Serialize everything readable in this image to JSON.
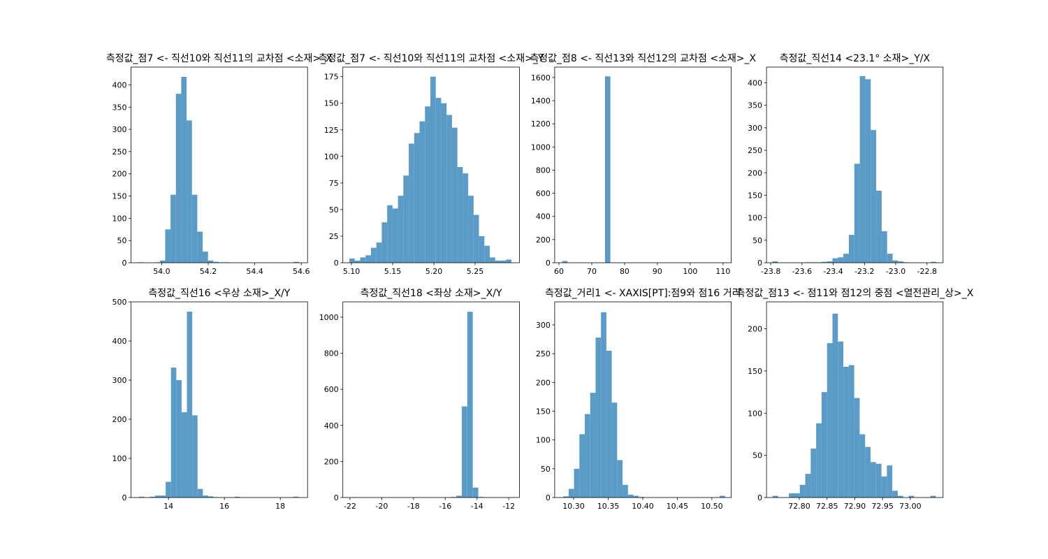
{
  "chart_data": [
    {
      "type": "histogram",
      "title": "측정값_점7 <- 직선10와 직선11의 교차점 <소재>_X",
      "color": "#5a9bc8",
      "bins": [
        53.9,
        53.923,
        53.946,
        53.969,
        53.992,
        54.015,
        54.038,
        54.061,
        54.084,
        54.107,
        54.13,
        54.153,
        54.176,
        54.199,
        54.222,
        54.245,
        54.268,
        54.291,
        54.314,
        54.337,
        54.36,
        54.383,
        54.406,
        54.429,
        54.452,
        54.475,
        54.498,
        54.521,
        54.544,
        54.567,
        54.59
      ],
      "counts": [
        1,
        0,
        0,
        1,
        5,
        75,
        153,
        380,
        418,
        320,
        153,
        70,
        25,
        5,
        2,
        1,
        1,
        0,
        0,
        0,
        0,
        0,
        0,
        0,
        0,
        0,
        0,
        0,
        0,
        2
      ],
      "xlim": [
        53.868,
        54.627
      ],
      "ylim": [
        0,
        440
      ],
      "xticks": [
        {
          "value": 54,
          "label": "54.0"
        },
        54.2,
        54.4,
        54.6
      ],
      "yticks": [
        0,
        50,
        100,
        150,
        200,
        250,
        300,
        350,
        400
      ]
    },
    {
      "type": "histogram",
      "title": "측정값_점7 <- 직선10와 직선11의 교차점 <소재>_Y",
      "color": "#5a9bc8",
      "bins": [
        5.0975,
        5.10405,
        5.1106,
        5.11715,
        5.1237,
        5.13025,
        5.1368,
        5.14335,
        5.1499,
        5.15645,
        5.163,
        5.16955,
        5.1761,
        5.18265,
        5.1892,
        5.19575,
        5.2023,
        5.20885,
        5.2154,
        5.22195,
        5.2285,
        5.23505,
        5.2416,
        5.24815,
        5.2547,
        5.26125,
        5.2678,
        5.27435,
        5.2809,
        5.28745,
        5.294
      ],
      "counts": [
        4,
        2,
        5,
        7,
        14,
        19,
        38,
        54,
        51,
        63,
        82,
        112,
        122,
        133,
        147,
        175,
        155,
        150,
        139,
        127,
        90,
        84,
        63,
        45,
        25,
        16,
        5,
        2,
        2,
        3
      ],
      "xlim": [
        5.0896,
        5.3037
      ],
      "ylim": [
        0,
        184
      ],
      "xticks": [
        {
          "value": 5.1,
          "label": "5.10"
        },
        5.15,
        {
          "value": 5.2,
          "label": "5.20"
        },
        5.25
      ],
      "yticks": [
        0,
        25,
        50,
        75,
        100,
        125,
        150,
        175
      ]
    },
    {
      "type": "histogram",
      "title": "측정값_점8 <- 직선13와 직선12의 교차점 <소재>_X",
      "color": "#5a9bc8",
      "bins": [
        61,
        62.63,
        64.26,
        65.89,
        67.52,
        69.15,
        70.78,
        72.41,
        74.04,
        75.67,
        77.3,
        78.93,
        80.56,
        82.19,
        83.82,
        85.45,
        87.08,
        88.71,
        90.34,
        91.97,
        93.6,
        95.23,
        96.86,
        98.49,
        100.12,
        101.75,
        103.38,
        105.01,
        106.64,
        108.27,
        109.9
      ],
      "counts": [
        15,
        0,
        0,
        0,
        0,
        0,
        0,
        0,
        1610,
        0,
        0,
        0,
        0,
        0,
        0,
        0,
        0,
        0,
        0,
        0,
        0,
        0,
        0,
        0,
        0,
        0,
        0,
        0,
        0,
        1
      ],
      "xlim": [
        58.7,
        112.5
      ],
      "ylim": [
        0,
        1690
      ],
      "xticks": [
        60,
        70,
        80,
        90,
        100,
        110
      ],
      "yticks": [
        0,
        200,
        400,
        600,
        800,
        1000,
        1200,
        1400,
        1600
      ]
    },
    {
      "type": "histogram",
      "title": "측정값_직선14 <23.1° 소재>_Y/X",
      "color": "#5a9bc8",
      "bins": [
        -23.79,
        -23.755,
        -23.72,
        -23.685,
        -23.65,
        -23.615,
        -23.58,
        -23.545,
        -23.51,
        -23.475,
        -23.44,
        -23.405,
        -23.37,
        -23.335,
        -23.3,
        -23.265,
        -23.23,
        -23.195,
        -23.16,
        -23.125,
        -23.09,
        -23.055,
        -23.02,
        -22.985,
        -22.95,
        -22.915,
        -22.88,
        -22.845,
        -22.81,
        -22.775,
        -22.74
      ],
      "counts": [
        3,
        0,
        0,
        0,
        0,
        0,
        1,
        1,
        1,
        2,
        3,
        10,
        12,
        20,
        62,
        220,
        415,
        408,
        295,
        160,
        70,
        20,
        5,
        3,
        1,
        0,
        0,
        0,
        0,
        2
      ],
      "xlim": [
        -23.827,
        -22.697
      ],
      "ylim": [
        0,
        435
      ],
      "xticks": [
        -23.8,
        -23.6,
        -23.4,
        -23.2,
        {
          "value": -23,
          "label": "-23.0"
        },
        -22.8
      ],
      "yticks": [
        0,
        50,
        100,
        150,
        200,
        250,
        300,
        350,
        400
      ]
    },
    {
      "type": "histogram",
      "title": "측정값_직선16 <우상 소재>_X/Y",
      "color": "#5a9bc8",
      "bins": [
        12.95,
        13.14,
        13.33,
        13.52,
        13.71,
        13.9,
        14.09,
        14.28,
        14.47,
        14.66,
        14.85,
        15.04,
        15.23,
        15.42,
        15.61,
        15.8,
        15.99,
        16.18,
        16.37,
        16.56,
        16.75,
        16.94,
        17.13,
        17.32,
        17.51,
        17.7,
        17.89,
        18.08,
        18.27,
        18.46,
        18.65
      ],
      "counts": [
        2,
        0,
        2,
        5,
        5,
        40,
        332,
        300,
        218,
        475,
        210,
        22,
        5,
        3,
        1,
        0,
        0,
        0,
        2,
        0,
        0,
        0,
        0,
        0,
        0,
        0,
        0,
        0,
        0,
        2
      ],
      "xlim": [
        12.66,
        18.975
      ],
      "ylim": [
        0,
        500
      ],
      "xticks": [
        14,
        16,
        18
      ],
      "yticks": [
        0,
        100,
        200,
        300,
        400,
        500
      ]
    },
    {
      "type": "histogram",
      "title": "측정값_직선18 <좌상 소재>_X/Y",
      "color": "#5a9bc8",
      "bins": [
        -21.9,
        -21.553,
        -21.206,
        -20.859,
        -20.512,
        -20.165,
        -19.818,
        -19.471,
        -19.124,
        -18.777,
        -18.43,
        -18.083,
        -17.736,
        -17.389,
        -17.042,
        -16.695,
        -16.348,
        -16.001,
        -15.654,
        -15.307,
        -14.96,
        -14.613,
        -14.266,
        -13.919,
        -13.572,
        -13.225,
        -12.878,
        -12.531,
        -12.184,
        -11.837,
        -11.49
      ],
      "counts": [
        2,
        0,
        0,
        0,
        0,
        0,
        0,
        0,
        0,
        0,
        0,
        0,
        0,
        0,
        0,
        0,
        0,
        0,
        3,
        10,
        505,
        1030,
        55,
        3,
        1,
        0,
        0,
        0,
        0,
        2
      ],
      "xlim": [
        -22.45,
        -11.33
      ],
      "ylim": [
        0,
        1085
      ],
      "xticks": [
        -22,
        -20,
        -18,
        -16,
        -14,
        -12
      ],
      "yticks": [
        0,
        200,
        400,
        600,
        800,
        1000
      ]
    },
    {
      "type": "histogram",
      "title": "측정값_거리1 <- XAXIS[PT]:점9와 점16 거리",
      "color": "#5a9bc8",
      "bins": [
        10.285,
        10.2928,
        10.3006,
        10.3084,
        10.3162,
        10.324,
        10.3318,
        10.3396,
        10.3474,
        10.3552,
        10.363,
        10.3708,
        10.3786,
        10.3864,
        10.3942,
        10.402,
        10.4098,
        10.4176,
        10.4254,
        10.4332,
        10.441,
        10.4488,
        10.4566,
        10.4644,
        10.4722,
        10.48,
        10.4878,
        10.4956,
        10.5034,
        10.5112,
        10.519
      ],
      "counts": [
        2,
        15,
        50,
        110,
        145,
        182,
        278,
        322,
        255,
        165,
        65,
        22,
        5,
        3,
        1,
        0,
        0,
        0,
        0,
        0,
        0,
        0,
        0,
        0,
        0,
        0,
        0,
        0,
        0,
        3
      ],
      "xlim": [
        10.2726,
        10.528
      ],
      "ylim": [
        0,
        340
      ],
      "xticks": [
        {
          "value": 10.3,
          "label": "10.30"
        },
        10.35,
        {
          "value": 10.4,
          "label": "10.40"
        },
        10.45,
        {
          "value": 10.5,
          "label": "10.50"
        }
      ],
      "yticks": [
        0,
        50,
        100,
        150,
        200,
        250,
        300
      ]
    },
    {
      "type": "histogram",
      "title": "측정값_점13 <- 점11와 점12의 중점 <열전관리_상>_X",
      "color": "#5a9bc8",
      "bins": [
        72.752,
        72.7618,
        72.7716,
        72.7814,
        72.7912,
        72.801,
        72.8108,
        72.8206,
        72.8304,
        72.8402,
        72.85,
        72.8598,
        72.8696,
        72.8794,
        72.8892,
        72.899,
        72.9088,
        72.9186,
        72.9284,
        72.9382,
        72.948,
        72.9578,
        72.9676,
        72.9774,
        72.9872,
        72.997,
        73.0068,
        73.0166,
        73.0264,
        73.0362,
        73.046
      ],
      "counts": [
        2,
        0,
        0,
        5,
        5,
        15,
        28,
        58,
        88,
        125,
        183,
        218,
        185,
        155,
        157,
        118,
        75,
        60,
        42,
        40,
        25,
        38,
        8,
        2,
        0,
        2,
        0,
        0,
        0,
        2
      ],
      "xlim": [
        72.741,
        73.059
      ],
      "ylim": [
        0,
        232
      ],
      "xticks": [
        {
          "value": 72.8,
          "label": "72.80"
        },
        72.85,
        {
          "value": 72.9,
          "label": "72.90"
        },
        72.95,
        {
          "value": 73,
          "label": "73.00"
        }
      ],
      "yticks": [
        0,
        50,
        100,
        150,
        200
      ]
    }
  ]
}
